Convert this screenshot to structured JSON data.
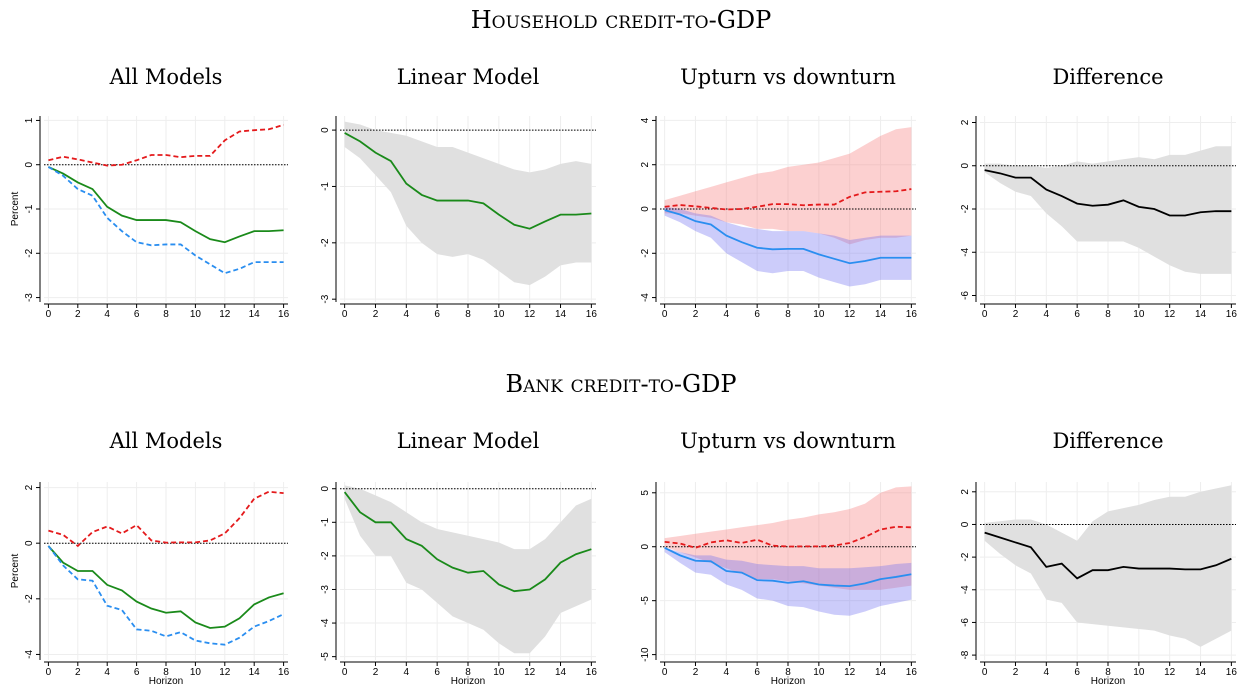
{
  "headings": [
    "Household credit-to-GDP",
    "Bank credit-to-GDP"
  ],
  "chart_data": [
    {
      "type": "line",
      "title": "All Models",
      "y_label": "Percent",
      "x": [
        0,
        1,
        2,
        3,
        4,
        5,
        6,
        7,
        8,
        9,
        10,
        11,
        12,
        13,
        14,
        15,
        16
      ],
      "xlim": [
        -0.3,
        16.3
      ],
      "xticks": [
        0,
        2,
        4,
        6,
        8,
        10,
        12,
        14,
        16
      ],
      "ylim": [
        -3.1,
        1.1
      ],
      "yticks": [
        1,
        0,
        -1,
        -2,
        -3
      ],
      "grid": true,
      "zero_line": true,
      "series": [
        {
          "color": "#e41a1c",
          "dash": true,
          "values": [
            0.1,
            0.18,
            0.12,
            0.05,
            -0.02,
            0,
            0.1,
            0.22,
            0.22,
            0.17,
            0.2,
            0.2,
            0.55,
            0.75,
            0.78,
            0.8,
            0.9
          ]
        },
        {
          "color": "#1a8a1a",
          "dash": false,
          "values": [
            -0.05,
            -0.2,
            -0.4,
            -0.55,
            -0.95,
            -1.15,
            -1.25,
            -1.25,
            -1.25,
            -1.3,
            -1.5,
            -1.68,
            -1.75,
            -1.62,
            -1.5,
            -1.5,
            -1.48
          ]
        },
        {
          "color": "#2a8ef0",
          "dash": true,
          "values": [
            -0.05,
            -0.25,
            -0.55,
            -0.7,
            -1.2,
            -1.5,
            -1.75,
            -1.82,
            -1.8,
            -1.8,
            -2.05,
            -2.25,
            -2.45,
            -2.35,
            -2.2,
            -2.2,
            -2.2
          ]
        }
      ]
    },
    {
      "type": "line",
      "title": "Linear Model",
      "x": [
        0,
        1,
        2,
        3,
        4,
        5,
        6,
        7,
        8,
        9,
        10,
        11,
        12,
        13,
        14,
        15,
        16
      ],
      "xlim": [
        -0.3,
        16.3
      ],
      "xticks": [
        0,
        2,
        4,
        6,
        8,
        10,
        12,
        14,
        16
      ],
      "ylim": [
        -3.05,
        0.25
      ],
      "yticks": [
        0,
        -1,
        -2,
        -3
      ],
      "grid": true,
      "zero_line": true,
      "bands": [
        {
          "color": "#e0e0e0",
          "upper": [
            0.15,
            0.1,
            0,
            -0.05,
            -0.1,
            -0.2,
            -0.3,
            -0.3,
            -0.4,
            -0.5,
            -0.6,
            -0.7,
            -0.75,
            -0.7,
            -0.6,
            -0.55,
            -0.6
          ],
          "lower": [
            -0.3,
            -0.5,
            -0.8,
            -1.1,
            -1.7,
            -2.0,
            -2.2,
            -2.25,
            -2.2,
            -2.3,
            -2.5,
            -2.7,
            -2.75,
            -2.6,
            -2.4,
            -2.35,
            -2.35
          ]
        }
      ],
      "series": [
        {
          "color": "#1a8a1a",
          "dash": false,
          "values": [
            -0.05,
            -0.2,
            -0.4,
            -0.55,
            -0.95,
            -1.15,
            -1.25,
            -1.25,
            -1.25,
            -1.3,
            -1.5,
            -1.68,
            -1.75,
            -1.62,
            -1.5,
            -1.5,
            -1.48
          ]
        }
      ]
    },
    {
      "type": "line",
      "title": "Upturn vs downturn",
      "x": [
        0,
        1,
        2,
        3,
        4,
        5,
        6,
        7,
        8,
        9,
        10,
        11,
        12,
        13,
        14,
        15,
        16
      ],
      "xlim": [
        -0.3,
        16.3
      ],
      "xticks": [
        0,
        2,
        4,
        6,
        8,
        10,
        12,
        14,
        16
      ],
      "ylim": [
        -4.2,
        4.2
      ],
      "yticks": [
        4,
        2,
        0,
        -2,
        -4
      ],
      "grid": true,
      "zero_line": true,
      "bands": [
        {
          "color": "rgba(245,120,120,0.35)",
          "upper": [
            0.4,
            0.6,
            0.8,
            1.0,
            1.2,
            1.4,
            1.6,
            1.7,
            1.9,
            2.0,
            2.1,
            2.3,
            2.5,
            2.9,
            3.3,
            3.6,
            3.7
          ],
          "lower": [
            -0.2,
            -0.2,
            -0.3,
            -0.4,
            -0.6,
            -0.7,
            -0.9,
            -0.9,
            -1.0,
            -1.0,
            -1.1,
            -1.3,
            -1.6,
            -1.4,
            -1.3,
            -1.3,
            -1.2
          ]
        },
        {
          "color": "rgba(110,110,240,0.35)",
          "upper": [
            0.1,
            0,
            -0.2,
            -0.3,
            -0.6,
            -0.8,
            -0.9,
            -1.0,
            -1.0,
            -1.0,
            -1.1,
            -1.2,
            -1.4,
            -1.3,
            -1.2,
            -1.2,
            -1.2
          ],
          "lower": [
            -0.3,
            -0.6,
            -1.0,
            -1.3,
            -2.0,
            -2.4,
            -2.8,
            -2.9,
            -2.8,
            -2.8,
            -3.1,
            -3.3,
            -3.5,
            -3.4,
            -3.2,
            -3.2,
            -3.2
          ]
        }
      ],
      "series": [
        {
          "color": "#e41a1c",
          "dash": true,
          "values": [
            0.1,
            0.18,
            0.12,
            0.05,
            -0.02,
            0,
            0.1,
            0.22,
            0.22,
            0.17,
            0.2,
            0.2,
            0.55,
            0.75,
            0.78,
            0.8,
            0.9
          ]
        },
        {
          "color": "#2a8ef0",
          "dash": false,
          "values": [
            -0.05,
            -0.25,
            -0.55,
            -0.7,
            -1.2,
            -1.5,
            -1.75,
            -1.82,
            -1.8,
            -1.8,
            -2.05,
            -2.25,
            -2.45,
            -2.35,
            -2.2,
            -2.2,
            -2.2
          ]
        }
      ]
    },
    {
      "type": "line",
      "title": "Difference",
      "x": [
        0,
        1,
        2,
        3,
        4,
        5,
        6,
        7,
        8,
        9,
        10,
        11,
        12,
        13,
        14,
        15,
        16
      ],
      "xlim": [
        -0.3,
        16.3
      ],
      "xticks": [
        0,
        2,
        4,
        6,
        8,
        10,
        12,
        14,
        16
      ],
      "ylim": [
        -6.3,
        2.3
      ],
      "yticks": [
        2,
        0,
        -2,
        -4,
        -6
      ],
      "grid": true,
      "zero_line": true,
      "bands": [
        {
          "color": "#e0e0e0",
          "upper": [
            0.1,
            0.1,
            0,
            0,
            -0.1,
            0,
            0.2,
            0.1,
            0.2,
            0.3,
            0.4,
            0.3,
            0.5,
            0.5,
            0.7,
            0.9,
            0.9
          ],
          "lower": [
            -0.3,
            -0.8,
            -1.2,
            -1.4,
            -2.2,
            -2.8,
            -3.5,
            -3.5,
            -3.5,
            -3.5,
            -3.8,
            -4.2,
            -4.6,
            -4.9,
            -5.0,
            -5.0,
            -5.0
          ]
        }
      ],
      "series": [
        {
          "color": "#000000",
          "dash": false,
          "values": [
            -0.2,
            -0.35,
            -0.55,
            -0.55,
            -1.1,
            -1.4,
            -1.75,
            -1.85,
            -1.8,
            -1.6,
            -1.9,
            -2.0,
            -2.3,
            -2.3,
            -2.15,
            -2.1,
            -2.1
          ]
        }
      ]
    },
    {
      "type": "line",
      "title": "All Models",
      "y_label": "Percent",
      "x_label": "Horizon",
      "x": [
        0,
        1,
        2,
        3,
        4,
        5,
        6,
        7,
        8,
        9,
        10,
        11,
        12,
        13,
        14,
        15,
        16
      ],
      "xlim": [
        -0.3,
        16.3
      ],
      "xticks": [
        0,
        2,
        4,
        6,
        8,
        10,
        12,
        14,
        16
      ],
      "ylim": [
        -4.2,
        2.2
      ],
      "yticks": [
        2,
        0,
        -2,
        -4
      ],
      "grid": true,
      "zero_line": true,
      "series": [
        {
          "color": "#e41a1c",
          "dash": true,
          "values": [
            0.45,
            0.3,
            -0.1,
            0.4,
            0.6,
            0.35,
            0.65,
            0.1,
            0.02,
            0.03,
            0.03,
            0.1,
            0.35,
            0.9,
            1.6,
            1.85,
            1.8
          ]
        },
        {
          "color": "#1a8a1a",
          "dash": false,
          "values": [
            -0.1,
            -0.7,
            -1,
            -1,
            -1.5,
            -1.7,
            -2.1,
            -2.35,
            -2.5,
            -2.45,
            -2.85,
            -3.05,
            -3.0,
            -2.7,
            -2.2,
            -1.95,
            -1.8
          ]
        },
        {
          "color": "#2a8ef0",
          "dash": true,
          "values": [
            -0.1,
            -0.8,
            -1.3,
            -1.35,
            -2.25,
            -2.4,
            -3.1,
            -3.15,
            -3.35,
            -3.2,
            -3.5,
            -3.6,
            -3.65,
            -3.4,
            -3.0,
            -2.8,
            -2.55
          ]
        }
      ]
    },
    {
      "type": "line",
      "title": "Linear Model",
      "x_label": "Horizon",
      "x": [
        0,
        1,
        2,
        3,
        4,
        5,
        6,
        7,
        8,
        9,
        10,
        11,
        12,
        13,
        14,
        15,
        16
      ],
      "xlim": [
        -0.3,
        16.3
      ],
      "xticks": [
        0,
        2,
        4,
        6,
        8,
        10,
        12,
        14,
        16
      ],
      "ylim": [
        -5.1,
        0.2
      ],
      "yticks": [
        0,
        -1,
        -2,
        -3,
        -4,
        -5
      ],
      "grid": true,
      "zero_line": true,
      "bands": [
        {
          "color": "#e0e0e0",
          "upper": [
            0.1,
            0,
            -0.2,
            -0.4,
            -0.7,
            -1.0,
            -1.2,
            -1.3,
            -1.4,
            -1.5,
            -1.6,
            -1.8,
            -1.8,
            -1.5,
            -1.0,
            -0.5,
            -0.3
          ],
          "lower": [
            -0.3,
            -1.4,
            -2.0,
            -2.0,
            -2.8,
            -3.0,
            -3.4,
            -3.8,
            -4.0,
            -4.2,
            -4.6,
            -4.9,
            -4.9,
            -4.4,
            -3.7,
            -3.5,
            -3.3
          ]
        }
      ],
      "series": [
        {
          "color": "#1a8a1a",
          "dash": false,
          "values": [
            -0.1,
            -0.7,
            -1,
            -1,
            -1.5,
            -1.7,
            -2.1,
            -2.35,
            -2.5,
            -2.45,
            -2.85,
            -3.05,
            -3.0,
            -2.7,
            -2.2,
            -1.95,
            -1.8
          ]
        }
      ]
    },
    {
      "type": "line",
      "title": "Upturn vs downturn",
      "x_label": "Horizon",
      "x": [
        0,
        1,
        2,
        3,
        4,
        5,
        6,
        7,
        8,
        9,
        10,
        11,
        12,
        13,
        14,
        15,
        16
      ],
      "xlim": [
        -0.3,
        16.3
      ],
      "xticks": [
        0,
        2,
        4,
        6,
        8,
        10,
        12,
        14,
        16
      ],
      "ylim": [
        -10.5,
        6
      ],
      "yticks": [
        5,
        0,
        -5,
        -10
      ],
      "grid": true,
      "zero_line": true,
      "bands": [
        {
          "color": "rgba(245,120,120,0.35)",
          "upper": [
            0.8,
            1,
            1.2,
            1.4,
            1.6,
            1.8,
            2.0,
            2.2,
            2.5,
            2.7,
            3.0,
            3.2,
            3.5,
            4.0,
            5.0,
            5.5,
            5.6
          ],
          "lower": [
            0,
            -0.5,
            -1,
            -1.5,
            -2,
            -2.5,
            -3,
            -3,
            -3.2,
            -3.4,
            -3.6,
            -3.8,
            -4,
            -4,
            -4,
            -3.8,
            -3.6
          ]
        },
        {
          "color": "rgba(110,110,240,0.35)",
          "upper": [
            -0.1,
            -0.5,
            -0.8,
            -0.8,
            -1.2,
            -1.3,
            -1.6,
            -1.7,
            -1.8,
            -1.8,
            -2.0,
            -2.0,
            -2.0,
            -1.9,
            -1.8,
            -1.6,
            -1.5
          ],
          "lower": [
            -0.5,
            -1.5,
            -2.4,
            -2.6,
            -3.5,
            -4.0,
            -4.8,
            -5.0,
            -5.5,
            -5.6,
            -6.0,
            -6.3,
            -6.4,
            -6.0,
            -5.5,
            -5.2,
            -4.9
          ]
        }
      ],
      "series": [
        {
          "color": "#e41a1c",
          "dash": true,
          "values": [
            0.45,
            0.3,
            -0.1,
            0.4,
            0.6,
            0.35,
            0.65,
            0.1,
            0.02,
            0.03,
            0.03,
            0.1,
            0.35,
            0.9,
            1.6,
            1.85,
            1.8
          ]
        },
        {
          "color": "#2a8ef0",
          "dash": false,
          "values": [
            -0.1,
            -0.8,
            -1.3,
            -1.35,
            -2.25,
            -2.4,
            -3.1,
            -3.15,
            -3.35,
            -3.2,
            -3.5,
            -3.6,
            -3.65,
            -3.4,
            -3.0,
            -2.8,
            -2.55
          ]
        }
      ]
    },
    {
      "type": "line",
      "title": "Difference",
      "x_label": "Horizon",
      "x": [
        0,
        1,
        2,
        3,
        4,
        5,
        6,
        7,
        8,
        9,
        10,
        11,
        12,
        13,
        14,
        15,
        16
      ],
      "xlim": [
        -0.3,
        16.3
      ],
      "xticks": [
        0,
        2,
        4,
        6,
        8,
        10,
        12,
        14,
        16
      ],
      "ylim": [
        -8.3,
        2.6
      ],
      "yticks": [
        2,
        0,
        -2,
        -4,
        -6,
        -8
      ],
      "grid": true,
      "zero_line": true,
      "bands": [
        {
          "color": "#e0e0e0",
          "upper": [
            0.1,
            0.2,
            0.3,
            0.3,
            0,
            -0.5,
            -1.0,
            0.2,
            0.8,
            1.0,
            1.2,
            1.5,
            1.7,
            1.7,
            2.0,
            2.2,
            2.4
          ],
          "lower": [
            -1.0,
            -1.8,
            -2.5,
            -3.0,
            -4.6,
            -4.8,
            -6.0,
            -6.1,
            -6.2,
            -6.3,
            -6.4,
            -6.5,
            -6.8,
            -7.0,
            -7.5,
            -7.0,
            -6.5
          ]
        }
      ],
      "series": [
        {
          "color": "#000000",
          "dash": false,
          "values": [
            -0.5,
            -0.8,
            -1.1,
            -1.4,
            -2.6,
            -2.4,
            -3.3,
            -2.8,
            -2.8,
            -2.6,
            -2.7,
            -2.7,
            -2.7,
            -2.75,
            -2.75,
            -2.5,
            -2.1
          ]
        }
      ]
    }
  ]
}
